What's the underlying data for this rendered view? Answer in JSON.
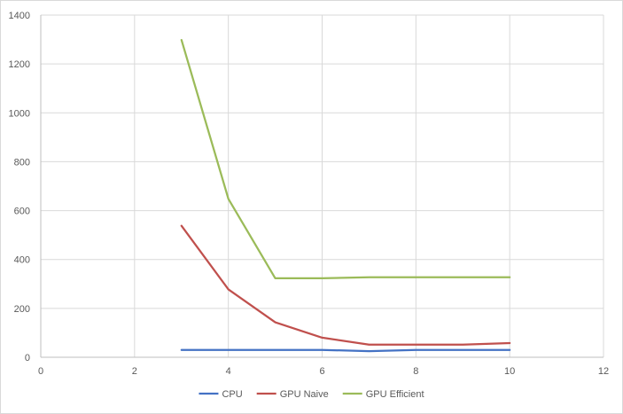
{
  "chart_data": {
    "type": "line",
    "title": "",
    "xlabel": "",
    "ylabel": "",
    "xlim": [
      0,
      12
    ],
    "ylim": [
      0,
      1400
    ],
    "x_ticks": [
      0,
      2,
      4,
      6,
      8,
      10,
      12
    ],
    "y_ticks": [
      0,
      200,
      400,
      600,
      800,
      1000,
      1200,
      1400
    ],
    "grid": true,
    "legend_position": "bottom",
    "series": [
      {
        "name": "CPU",
        "color": "#4472c4",
        "x": [
          3,
          4,
          5,
          6,
          7,
          8,
          9,
          10
        ],
        "y": [
          30,
          30,
          30,
          30,
          25,
          30,
          30,
          30
        ]
      },
      {
        "name": "GPU Naive",
        "color": "#c0504d",
        "x": [
          3,
          4,
          5,
          6,
          7,
          8,
          9,
          10
        ],
        "y": [
          538,
          278,
          143,
          80,
          52,
          52,
          52,
          58
        ]
      },
      {
        "name": "GPU Efficient",
        "color": "#9bbb59",
        "x": [
          3,
          4,
          5,
          6,
          7,
          8,
          9,
          10
        ],
        "y": [
          1298,
          648,
          323,
          323,
          327,
          327,
          327,
          327
        ]
      }
    ]
  }
}
